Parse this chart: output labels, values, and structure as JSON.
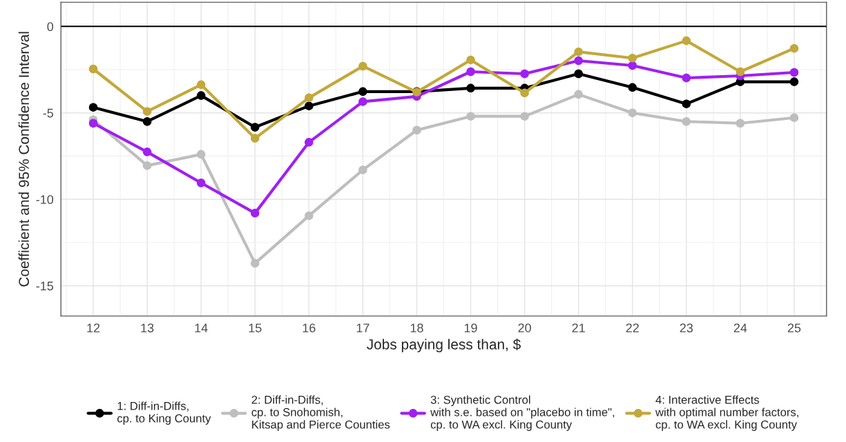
{
  "chart_data": {
    "type": "line",
    "xlabel": "Jobs paying less than, $",
    "ylabel": "Coefficient and 95% Confidence Interval",
    "x": [
      12,
      13,
      14,
      15,
      16,
      17,
      18,
      19,
      20,
      21,
      22,
      23,
      24,
      25
    ],
    "series": [
      {
        "name": "1: Diff-in-Diffs,\ncp. to King County",
        "color": "#000000",
        "values": [
          -4.68,
          -5.5,
          -4.0,
          -5.83,
          -4.6,
          -3.77,
          -3.77,
          -3.57,
          -3.57,
          -2.74,
          -3.53,
          -4.48,
          -3.2,
          -3.2
        ]
      },
      {
        "name": "2: Diff-in-Diffs,\ncp. to Snohomish,\nKitsap and Pierce Counties",
        "color": "#bebebe",
        "values": [
          -5.4,
          -8.05,
          -7.4,
          -13.7,
          -10.95,
          -8.3,
          -6.0,
          -5.2,
          -5.2,
          -3.93,
          -5.0,
          -5.5,
          -5.6,
          -5.28
        ]
      },
      {
        "name": "3: Synthetic Control\nwith s.e. based on \"placebo in time\",\ncp. to WA excl. King County",
        "color": "#a020f0",
        "values": [
          -5.6,
          -7.26,
          -9.05,
          -10.8,
          -6.7,
          -4.35,
          -4.05,
          -2.62,
          -2.74,
          -1.98,
          -2.26,
          -2.98,
          -2.86,
          -2.66
        ]
      },
      {
        "name": "4: Interactive Effects\nwith optimal number factors,\ncp. to WA excl. King County",
        "color": "#c3a83a",
        "values": [
          -2.46,
          -4.92,
          -3.37,
          -6.47,
          -4.13,
          -2.3,
          -3.8,
          -1.94,
          -3.85,
          -1.47,
          -1.83,
          -0.83,
          -2.62,
          -1.27
        ]
      }
    ],
    "xlim": [
      11.4,
      25.6
    ],
    "xticks": [
      12,
      13,
      14,
      15,
      16,
      17,
      18,
      19,
      20,
      21,
      22,
      23,
      24,
      25
    ],
    "ylim": [
      -16.75,
      1.4
    ],
    "yticks": [
      0,
      -5,
      -10,
      -15
    ],
    "ref_lines": [
      {
        "axis": "y",
        "value": 0,
        "color": "#000000"
      }
    ],
    "grid": true,
    "legend": "bottom",
    "marker": "circle",
    "line_style": "solid"
  }
}
